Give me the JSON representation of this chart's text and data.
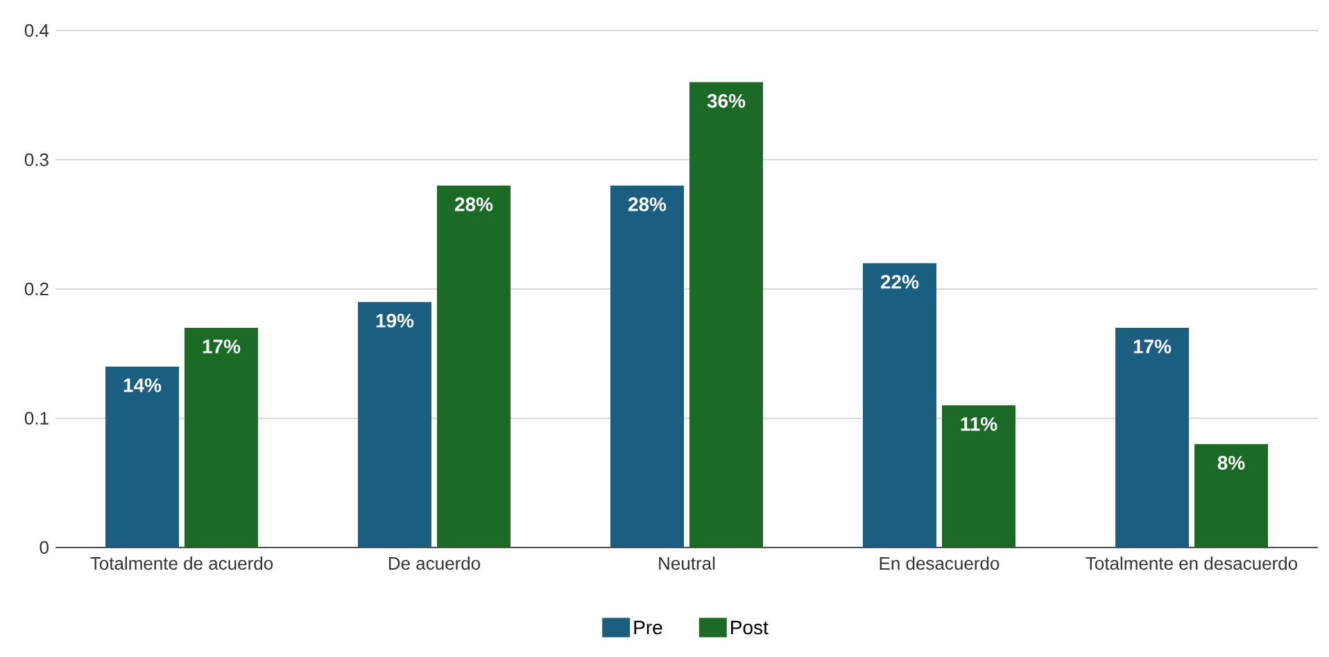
{
  "chart_data": {
    "type": "bar",
    "categories": [
      "Totalmente de acuerdo",
      "De acuerdo",
      "Neutral",
      "En desacuerdo",
      "Totalmente en desacuerdo"
    ],
    "series": [
      {
        "name": "Pre",
        "color": "#1a5f80",
        "values": [
          0.14,
          0.19,
          0.28,
          0.22,
          0.17
        ],
        "value_labels": [
          "14%",
          "19%",
          "28%",
          "22%",
          "17%"
        ]
      },
      {
        "name": "Post",
        "color": "#1b6b27",
        "values": [
          0.17,
          0.28,
          0.36,
          0.11,
          0.08
        ],
        "value_labels": [
          "17%",
          "28%",
          "36%",
          "11%",
          "8%"
        ]
      }
    ],
    "ylim": [
      0,
      0.4
    ],
    "yticks": [
      0,
      0.1,
      0.2,
      0.3,
      0.4
    ],
    "grid": "y",
    "legend": "bottom"
  }
}
